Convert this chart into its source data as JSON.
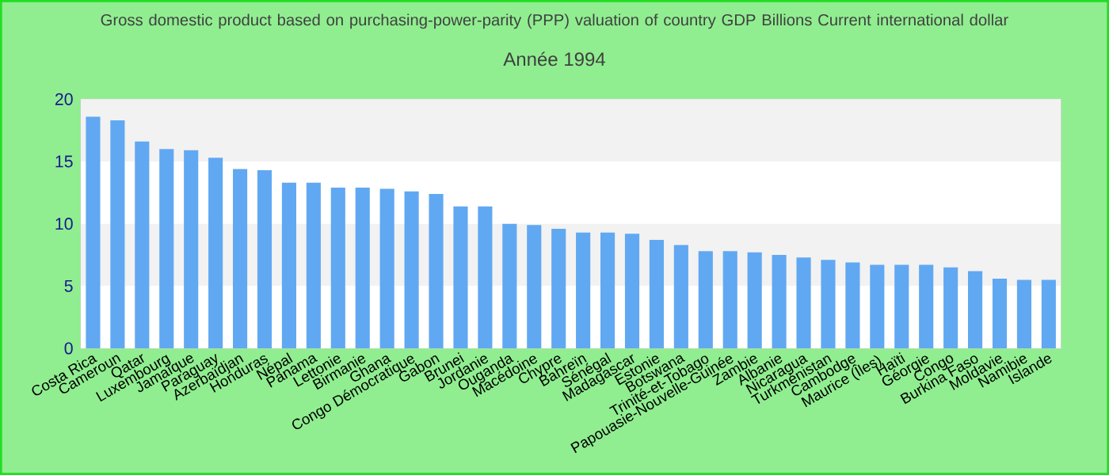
{
  "chart_data": {
    "type": "bar",
    "title": "Gross domestic product based on purchasing-power-parity (PPP) valuation of country GDP Billions Current international dollar",
    "subtitle": "Année 1994",
    "categories": [
      "Costa Rica",
      "Cameroun",
      "Qatar",
      "Luxembourg",
      "Jamaïque",
      "Paraguay",
      "Azerbaïdjan",
      "Honduras",
      "Népal",
      "Panama",
      "Lettonie",
      "Birmanie",
      "Ghana",
      "Congo Démocratique",
      "Gabon",
      "Brunei",
      "Jordanie",
      "Ouganda",
      "Macédoine",
      "Chypre",
      "Bahreïn",
      "Sénégal",
      "Madagascar",
      "Estonie",
      "Botswana",
      "Trinité-et-Tobago",
      "Papouasie-Nouvelle-Guinée",
      "Zambie",
      "Albanie",
      "Nicaragua",
      "Turkménistan",
      "Cambodge",
      "Maurice (Îles)",
      "Haïti",
      "Géorgie",
      "Congo",
      "Burkina Faso",
      "Moldavie",
      "Namibie",
      "Islande"
    ],
    "values": [
      18.6,
      18.3,
      16.6,
      16.0,
      15.9,
      15.3,
      14.4,
      14.3,
      13.3,
      13.3,
      12.9,
      12.9,
      12.8,
      12.6,
      12.4,
      11.4,
      11.4,
      10.0,
      9.9,
      9.6,
      9.3,
      9.3,
      9.2,
      8.7,
      8.3,
      7.8,
      7.8,
      7.7,
      7.5,
      7.3,
      7.1,
      6.9,
      6.7,
      6.7,
      6.7,
      6.5,
      6.2,
      5.6,
      5.5,
      5.5
    ],
    "color": "#61a8f2",
    "ylim": [
      0,
      20
    ],
    "yticks": [
      0,
      5,
      10,
      15,
      20
    ]
  }
}
